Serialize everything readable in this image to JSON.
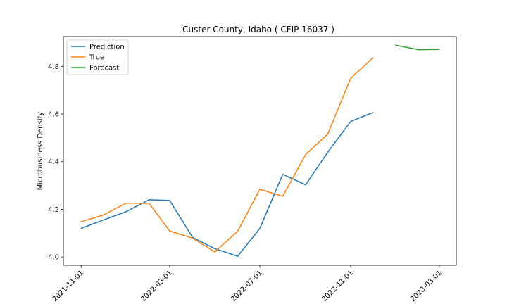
{
  "chart_data": {
    "type": "line",
    "title": "Custer County, Idaho ( CFIP 16037 )",
    "xlabel": "",
    "ylabel": "Microbusiness Density",
    "xlim": [
      "2021-10-08",
      "2023-03-24"
    ],
    "ylim": [
      3.965,
      4.925
    ],
    "x_ticks": [
      "2021-11-01",
      "2022-03-01",
      "2022-07-01",
      "2022-11-01",
      "2023-03-01"
    ],
    "y_ticks": [
      4.0,
      4.2,
      4.4,
      4.6,
      4.8
    ],
    "y_tick_labels": [
      "4.0",
      "4.2",
      "4.4",
      "4.6",
      "4.8"
    ],
    "grid": false,
    "legend_position": "top-left",
    "series": [
      {
        "name": "Prediction",
        "color": "#1f77b4",
        "points": [
          {
            "x": "2021-11-01",
            "y": 4.12
          },
          {
            "x": "2021-12-01",
            "y": 4.155
          },
          {
            "x": "2022-01-01",
            "y": 4.19
          },
          {
            "x": "2022-02-01",
            "y": 4.24
          },
          {
            "x": "2022-03-01",
            "y": 4.237
          },
          {
            "x": "2022-04-01",
            "y": 4.082
          },
          {
            "x": "2022-05-01",
            "y": 4.035
          },
          {
            "x": "2022-06-01",
            "y": 4.003
          },
          {
            "x": "2022-07-01",
            "y": 4.12
          },
          {
            "x": "2022-08-01",
            "y": 4.347
          },
          {
            "x": "2022-09-01",
            "y": 4.303
          },
          {
            "x": "2022-10-01",
            "y": 4.44
          },
          {
            "x": "2022-11-01",
            "y": 4.569
          },
          {
            "x": "2022-12-01",
            "y": 4.606
          }
        ]
      },
      {
        "name": "True",
        "color": "#ff7f0e",
        "points": [
          {
            "x": "2021-11-01",
            "y": 4.148
          },
          {
            "x": "2021-12-01",
            "y": 4.176
          },
          {
            "x": "2022-01-01",
            "y": 4.226
          },
          {
            "x": "2022-02-01",
            "y": 4.225
          },
          {
            "x": "2022-03-01",
            "y": 4.109
          },
          {
            "x": "2022-04-01",
            "y": 4.079
          },
          {
            "x": "2022-05-01",
            "y": 4.021
          },
          {
            "x": "2022-06-01",
            "y": 4.108
          },
          {
            "x": "2022-07-01",
            "y": 4.284
          },
          {
            "x": "2022-08-01",
            "y": 4.255
          },
          {
            "x": "2022-09-01",
            "y": 4.43
          },
          {
            "x": "2022-10-01",
            "y": 4.516
          },
          {
            "x": "2022-11-01",
            "y": 4.75
          },
          {
            "x": "2022-12-01",
            "y": 4.836
          }
        ]
      },
      {
        "name": "Forecast",
        "color": "#2ca02c",
        "points": [
          {
            "x": "2023-01-01",
            "y": 4.889
          },
          {
            "x": "2023-02-01",
            "y": 4.87
          },
          {
            "x": "2023-03-01",
            "y": 4.871
          }
        ]
      }
    ]
  }
}
